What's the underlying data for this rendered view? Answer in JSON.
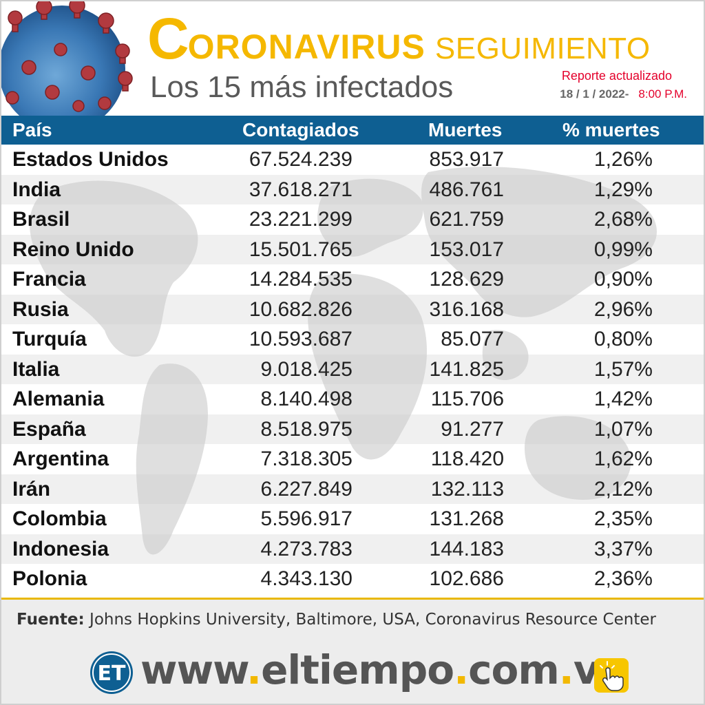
{
  "header": {
    "title_initial": "C",
    "title_rest": "ORONAVIRUS",
    "title_sub": "SEGUIMIENTO",
    "subtitle": "Los 15 más infectados",
    "report_label": "Reporte actualizado",
    "report_date": "18 / 1 / 2022-",
    "report_time": "8:00 P.M."
  },
  "table": {
    "columns": [
      "País",
      "Contagiados",
      "Muertes",
      "% muertes"
    ],
    "rows": [
      {
        "country": "Estados Unidos",
        "cases": "67.524.239",
        "deaths": "853.917",
        "pct": "1,26%"
      },
      {
        "country": "India",
        "cases": "37.618.271",
        "deaths": "486.761",
        "pct": "1,29%"
      },
      {
        "country": "Brasil",
        "cases": "23.221.299",
        "deaths": "621.759",
        "pct": "2,68%"
      },
      {
        "country": "Reino Unido",
        "cases": "15.501.765",
        "deaths": "153.017",
        "pct": "0,99%"
      },
      {
        "country": "Francia",
        "cases": "14.284.535",
        "deaths": "128.629",
        "pct": "0,90%"
      },
      {
        "country": "Rusia",
        "cases": "10.682.826",
        "deaths": "316.168",
        "pct": "2,96%"
      },
      {
        "country": "Turquía",
        "cases": "10.593.687",
        "deaths": "85.077",
        "pct": "0,80%"
      },
      {
        "country": "Italia",
        "cases": "9.018.425",
        "deaths": "141.825",
        "pct": "1,57%"
      },
      {
        "country": "Alemania",
        "cases": "8.140.498",
        "deaths": "115.706",
        "pct": "1,42%"
      },
      {
        "country": "España",
        "cases": "8.518.975",
        "deaths": "91.277",
        "pct": "1,07%"
      },
      {
        "country": "Argentina",
        "cases": "7.318.305",
        "deaths": "118.420",
        "pct": "1,62%"
      },
      {
        "country": "Irán",
        "cases": "6.227.849",
        "deaths": "132.113",
        "pct": "2,12%"
      },
      {
        "country": "Colombia",
        "cases": "5.596.917",
        "deaths": "131.268",
        "pct": "2,35%"
      },
      {
        "country": "Indonesia",
        "cases": "4.273.783",
        "deaths": "144.183",
        "pct": "3,37%"
      },
      {
        "country": "Polonia",
        "cases": "4.343.130",
        "deaths": "102.686",
        "pct": "2,36%"
      }
    ]
  },
  "footer": {
    "source_label": "Fuente:",
    "source_text": "Johns Hopkins University, Baltimore, USA, Coronavirus Resource Center",
    "logo_text": "ET",
    "url_parts": [
      "www",
      ".",
      "eltiempo",
      ".",
      "com",
      ".",
      "ve"
    ]
  },
  "icons": {
    "virus": "coronavirus-illustration-icon",
    "map": "world-map-background",
    "logo": "el-tiempo-logo-icon",
    "hand": "pointing-hand-icon"
  },
  "colors": {
    "title_yellow": "#f5b800",
    "header_blue": "#0e5f92",
    "report_red": "#e4002b",
    "url_gray": "#555555",
    "url_dot_yellow": "#f2b800"
  }
}
